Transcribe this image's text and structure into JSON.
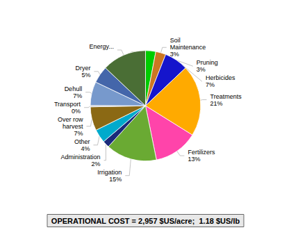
{
  "chart_data": {
    "type": "pie",
    "title": "OPERATIONAL COST = 2,957 $US/acre;  1.18 $US/lb",
    "categories": [
      "Pruning\n3%",
      "Soil\nMaintenance\n3%",
      "Herbicides\n7%",
      "Treatments\n21%",
      "Fertilizers\n13%",
      "Irrigation\n15%",
      "Administration\n2%",
      "Other\n4%",
      "Over row\nharvest\n7%",
      "Transport\n0%",
      "Dehull\n7%",
      "Dryer\n5%",
      "Energy...\n"
    ],
    "values": [
      3,
      3,
      7,
      21,
      13,
      15,
      2,
      4,
      7,
      0.4,
      7,
      5,
      13
    ],
    "colors": [
      "#00cc00",
      "#cc7722",
      "#1515cc",
      "#ffaa00",
      "#ff44aa",
      "#6aaa33",
      "#1a2a7a",
      "#00aacc",
      "#8b6914",
      "#bbbbbb",
      "#7799cc",
      "#4466aa",
      "#4a6e35"
    ]
  }
}
